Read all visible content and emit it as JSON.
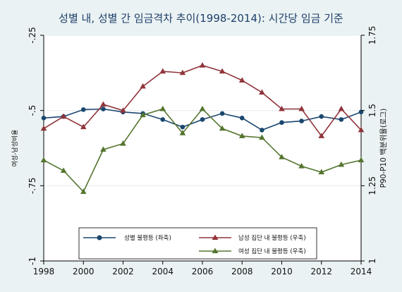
{
  "chart_data": {
    "type": "line",
    "title": "성별 내, 성별 간 임금격차 추이(1998-2014): 시간당 임금 기준",
    "xlabel": "",
    "ylabel_left": "여성-남성비율",
    "ylabel_right": "P90-P10 백분위율(로그)",
    "x": [
      1998,
      1999,
      2000,
      2001,
      2002,
      2003,
      2004,
      2005,
      2006,
      2007,
      2008,
      2009,
      2010,
      2011,
      2012,
      2013,
      2014
    ],
    "x_ticks": [
      "1998",
      "2000",
      "2002",
      "2004",
      "2006",
      "2008",
      "2010",
      "2012",
      "2014"
    ],
    "xlim": [
      1998,
      2014
    ],
    "ylim_left": [
      -1,
      -0.25
    ],
    "ylim_right": [
      1,
      1.75
    ],
    "y_ticks_left": [
      "-1",
      "-.75",
      "-.5",
      "-.25"
    ],
    "y_ticks_right": [
      "1",
      "1.25",
      "1.5",
      "1.75"
    ],
    "grid": true,
    "legend_position": "bottom-center",
    "series": [
      {
        "name": "성별 불평등 (좌축)",
        "axis": "left",
        "color": "#1a476f",
        "marker": "circle",
        "values": [
          -0.525,
          -0.52,
          -0.497,
          -0.495,
          -0.505,
          -0.51,
          -0.53,
          -0.555,
          -0.53,
          -0.51,
          -0.525,
          -0.565,
          -0.54,
          -0.535,
          -0.52,
          -0.53,
          -0.505
        ]
      },
      {
        "name": "남성 집단 내 불평등 (우축)",
        "axis": "right",
        "color": "#90353b",
        "marker": "triangle",
        "values": [
          1.44,
          1.48,
          1.445,
          1.52,
          1.5,
          1.58,
          1.63,
          1.625,
          1.65,
          1.63,
          1.6,
          1.56,
          1.505,
          1.505,
          1.415,
          1.505,
          1.435
        ]
      },
      {
        "name": "여성 집단 내 불평등 (우축)",
        "axis": "right",
        "color": "#55752f",
        "marker": "triangle",
        "values": [
          1.335,
          1.3,
          1.23,
          1.37,
          1.39,
          1.485,
          1.505,
          1.425,
          1.505,
          1.44,
          1.415,
          1.41,
          1.345,
          1.315,
          1.295,
          1.32,
          1.335
        ]
      }
    ]
  }
}
